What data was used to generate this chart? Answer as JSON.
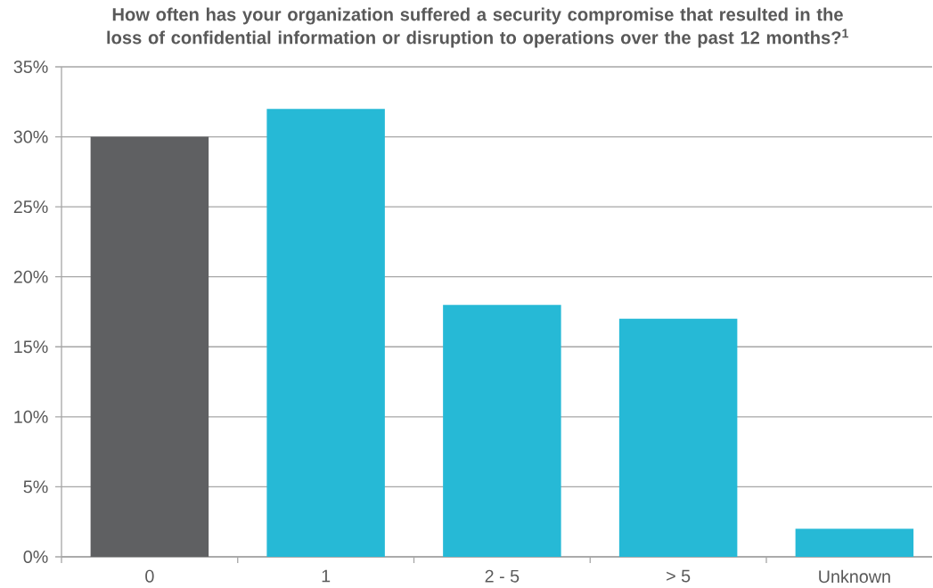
{
  "chart_data": {
    "type": "bar",
    "title": "How often has your organization suffered a security compromise that resulted in the loss of confidential information or disruption to operations over the past 12 months?$^{1}$",
    "categories": [
      "0",
      "1",
      "2 - 5",
      "> 5",
      "Unknown"
    ],
    "values": [
      30,
      32,
      18,
      17,
      2
    ],
    "colors": [
      "#5f6062",
      "#26b9d6",
      "#26b9d6",
      "#26b9d6",
      "#26b9d6"
    ],
    "ylim": [
      0,
      35
    ],
    "yticks": [
      {
        "value": 0,
        "label": "0%"
      },
      {
        "value": 5,
        "label": "5%"
      },
      {
        "value": 10,
        "label": "10%"
      },
      {
        "value": 15,
        "label": "15%"
      },
      {
        "value": 20,
        "label": "20%"
      },
      {
        "value": 25,
        "label": "25%"
      },
      {
        "value": 30,
        "label": "30%"
      },
      {
        "value": 35,
        "label": "35%"
      }
    ],
    "grid": "y"
  }
}
